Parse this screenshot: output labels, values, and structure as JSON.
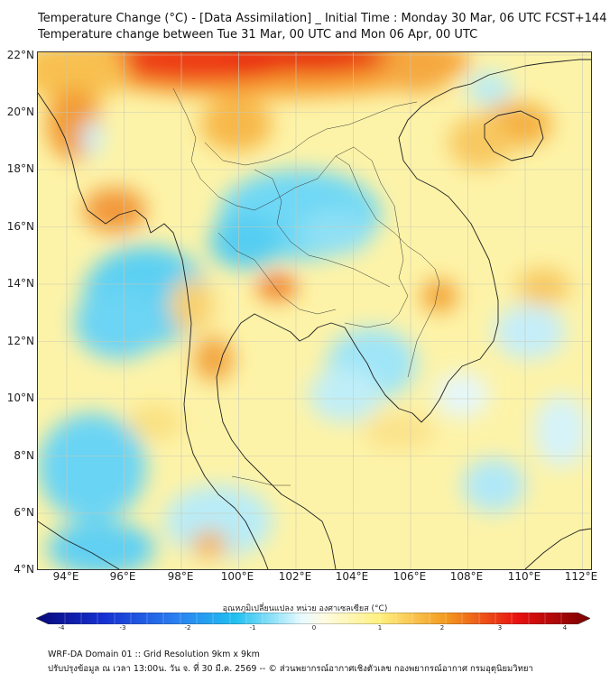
{
  "header": {
    "title_line1": "Temperature Change (°C) - [Data Assimilation] _ Initial Time : Monday 30 Mar, 06 UTC FCST+144",
    "title_line2": "Temperature change between Tue 31 Mar, 00 UTC and Mon 06 Apr, 00 UTC"
  },
  "axes": {
    "lat_labels": [
      "22°N",
      "20°N",
      "18°N",
      "16°N",
      "14°N",
      "12°N",
      "10°N",
      "8°N",
      "6°N",
      "4°N"
    ],
    "lon_labels": [
      "94°E",
      "96°E",
      "98°E",
      "100°E",
      "102°E",
      "104°E",
      "106°E",
      "108°E",
      "110°E",
      "112°E"
    ]
  },
  "colorbar": {
    "title": "อุณหภูมิเปลี่ยนแปลง หน่วย องศาเซลเซียส (°C)",
    "tick_labels": [
      "-4",
      "-3",
      "-2",
      "-1",
      "0",
      "1",
      "2",
      "3",
      "4"
    ],
    "colors": {
      "deep_blue": "#08087a",
      "blue": "#1530d0",
      "sky": "#20c0f0",
      "pale": "#e8fbff",
      "yellow": "#fff080",
      "orange": "#f39a20",
      "red": "#e81010",
      "dark_red": "#780000"
    }
  },
  "footer": {
    "line1": "WRF-DA Domain 01 :: Grid Resolution 9km x 9km",
    "line2": "ปรับปรุงข้อมูล ณ เวลา 13:00น. วัน จ. ที่ 30 มี.ค. 2569 -- © ส่วนพยากรณ์อากาศเชิงตัวเลข กองพยากรณ์อากาศ กรมอุตุนิยมวิทยา"
  }
}
